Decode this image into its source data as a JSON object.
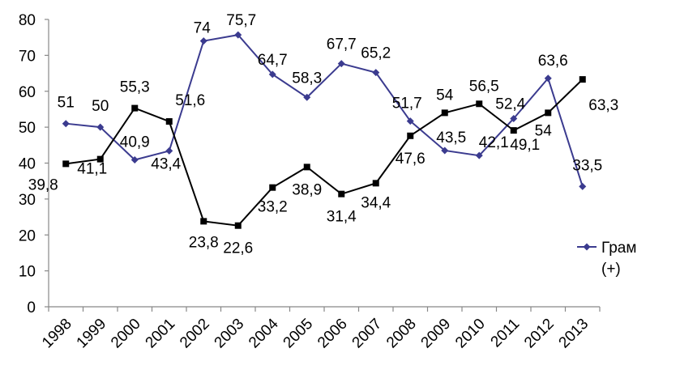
{
  "chart_data": {
    "type": "line",
    "categories": [
      "1998",
      "1999",
      "2000",
      "2001",
      "2002",
      "2003",
      "2004",
      "2005",
      "2006",
      "2007",
      "2008",
      "2009",
      "2010",
      "2011",
      "2012",
      "2013"
    ],
    "ylim": [
      0,
      80
    ],
    "yticks": [
      0,
      10,
      20,
      30,
      40,
      50,
      60,
      70,
      80
    ],
    "grid": false,
    "legend": {
      "placement": "right"
    },
    "series": [
      {
        "name": "Грам (+)",
        "color": "#3b3b8f",
        "marker": "diamond",
        "values": [
          51,
          50,
          40.9,
          43.4,
          74,
          75.7,
          64.7,
          58.3,
          67.7,
          65.2,
          51.7,
          43.5,
          42.1,
          52.4,
          63.6,
          33.5
        ],
        "labels": [
          "51",
          "50",
          "40,9",
          "43,4",
          "74",
          "75,7",
          "64,7",
          "58,3",
          "67,7",
          "65,2",
          "51,7",
          "43,5",
          "42,1",
          "52,4",
          "63,6",
          "33,5"
        ]
      },
      {
        "color": "#000000",
        "marker": "square",
        "values": [
          39.8,
          41.1,
          55.3,
          51.6,
          23.8,
          22.6,
          33.2,
          38.9,
          31.4,
          34.4,
          47.6,
          54,
          56.5,
          49.1,
          54,
          63.3
        ],
        "labels": [
          "39,8",
          "41,1",
          "55,3",
          "51,6",
          "23,8",
          "22,6",
          "33,2",
          "38,9",
          "31,4",
          "34,4",
          "47,6",
          "54",
          "56,5",
          "49,1",
          "54",
          "63,3"
        ]
      }
    ]
  }
}
